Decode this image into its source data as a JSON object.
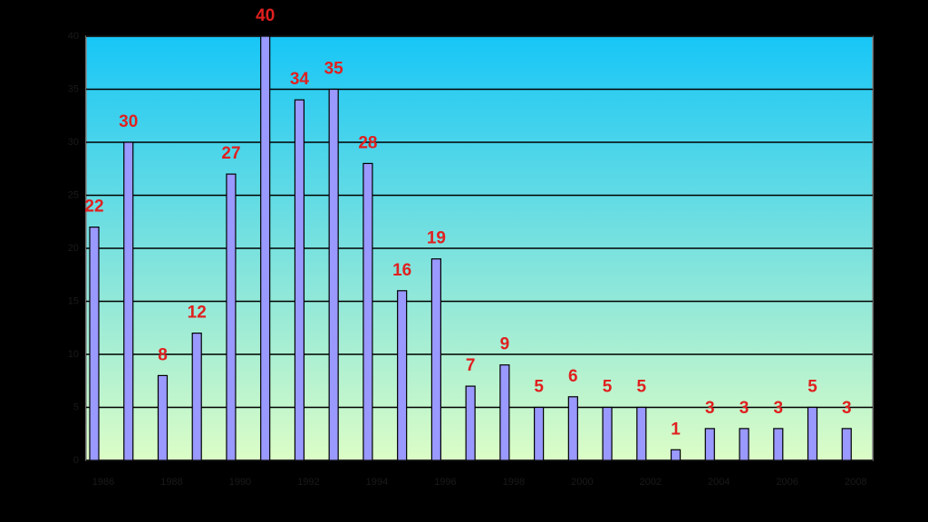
{
  "chart_data": {
    "type": "bar",
    "categories": [
      "1986",
      null,
      "1988",
      null,
      "1990",
      null,
      "1992",
      null,
      "1994",
      null,
      "1996",
      null,
      "1998",
      null,
      "2000",
      null,
      "2002",
      null,
      "2004",
      null,
      "2006",
      null,
      "2008"
    ],
    "values": [
      22,
      30,
      8,
      12,
      27,
      40,
      34,
      35,
      28,
      16,
      19,
      7,
      9,
      5,
      6,
      5,
      5,
      1,
      3,
      3,
      3,
      5,
      3
    ],
    "color": "#9999ff",
    "value_label_color": "#e0201f",
    "ylim": [
      0,
      40
    ],
    "yticks": [
      0,
      5,
      10,
      15,
      20,
      25,
      30,
      35,
      40
    ],
    "grid": true
  }
}
